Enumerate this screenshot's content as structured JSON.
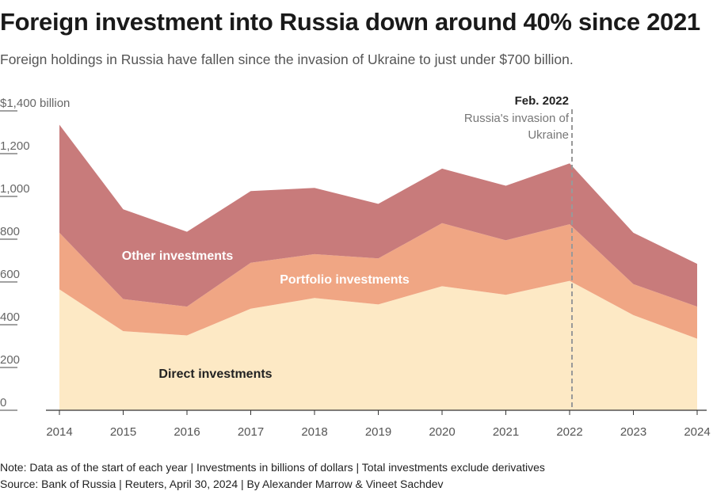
{
  "title": "Foreign investment into Russia down around 40% since 2021",
  "subtitle": "Foreign holdings in Russia have fallen since the invasion of Ukraine to just under $700 billion.",
  "note": "Note: Data as of the start of each year | Investments in billions of dollars | Total investments exclude derivatives",
  "source": "Source: Bank of Russia | Reuters, April 30, 2024 | By Alexander Marrow & Vineet Sachdev",
  "colors": {
    "direct": "#fde9c5",
    "portfolio": "#f0a684",
    "other": "#c87b7b",
    "axis": "#333333",
    "annotation": "#999999"
  },
  "chart_data": {
    "type": "area",
    "stacked": true,
    "x": [
      "2014",
      "2015",
      "2016",
      "2017",
      "2018",
      "2019",
      "2020",
      "2021",
      "2022",
      "2023",
      "2024"
    ],
    "series": [
      {
        "name": "Direct investments",
        "values": [
          565,
          370,
          350,
          475,
          525,
          495,
          580,
          540,
          605,
          445,
          335
        ]
      },
      {
        "name": "Portfolio investments",
        "values": [
          265,
          150,
          135,
          215,
          205,
          215,
          295,
          255,
          265,
          145,
          150
        ]
      },
      {
        "name": "Other investments",
        "values": [
          505,
          420,
          350,
          335,
          310,
          255,
          255,
          255,
          285,
          240,
          200
        ]
      }
    ],
    "ylim": [
      0,
      1400
    ],
    "yticks": [
      0,
      200,
      400,
      600,
      800,
      1000,
      1200,
      1400
    ],
    "ytick_labels": [
      "0",
      "200",
      "400",
      "600",
      "800",
      "1,000",
      "1,200",
      "$1,400 billion"
    ],
    "annotation": {
      "x": "2022",
      "title": "Feb. 2022",
      "text_lines": [
        "Russia's invasion of",
        "Ukraine"
      ]
    }
  }
}
